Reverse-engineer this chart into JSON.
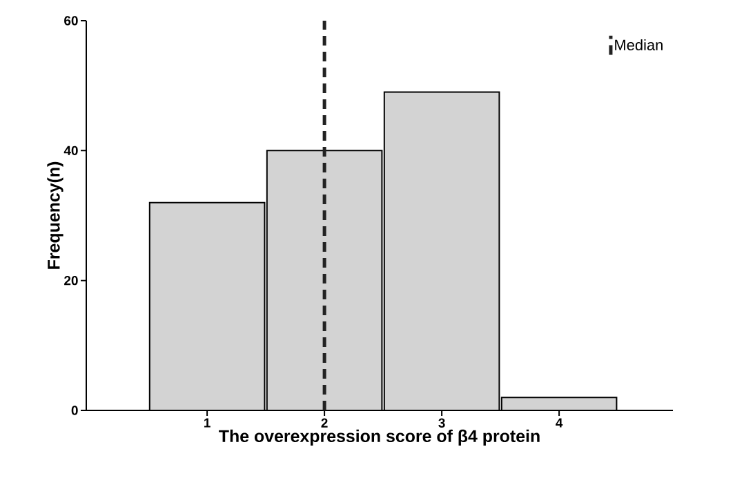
{
  "chart_data": {
    "type": "bar",
    "xlabel": "The overexpression score of β4 protein",
    "ylabel": "Frequency(n)",
    "categories": [
      "1",
      "2",
      "3",
      "4"
    ],
    "values": [
      32,
      40,
      49,
      2
    ],
    "color": "#d3d3d3",
    "ylim": [
      0,
      60
    ],
    "yticks": [
      0,
      20,
      40,
      60
    ],
    "ref_lines": [
      {
        "axis": "x",
        "value": "2",
        "label": "Median",
        "color": "#222222",
        "line_style": "dashed"
      }
    ],
    "legend": "top right",
    "grid": false
  }
}
